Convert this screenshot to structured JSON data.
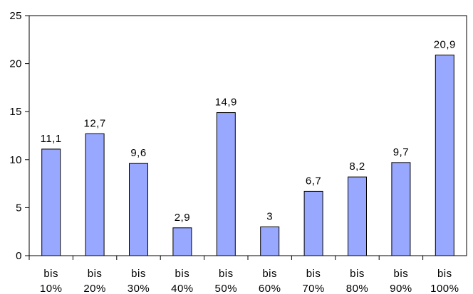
{
  "chart_data": {
    "type": "bar",
    "categories": [
      [
        "bis",
        "10%"
      ],
      [
        "bis",
        "20%"
      ],
      [
        "bis",
        "30%"
      ],
      [
        "bis",
        "40%"
      ],
      [
        "bis",
        "50%"
      ],
      [
        "bis",
        "60%"
      ],
      [
        "bis",
        "70%"
      ],
      [
        "bis",
        "80%"
      ],
      [
        "bis",
        "90%"
      ],
      [
        "bis",
        "100%"
      ]
    ],
    "values": [
      11.1,
      12.7,
      9.6,
      2.9,
      14.9,
      3,
      6.7,
      8.2,
      9.7,
      20.9
    ],
    "data_labels": [
      "11,1",
      "12,7",
      "9,6",
      "2,9",
      "14,9",
      "3",
      "6,7",
      "8,2",
      "9,7",
      "20,9"
    ],
    "y_ticks": [
      "0",
      "5",
      "10",
      "15",
      "20",
      "25"
    ],
    "ylim": [
      0,
      25
    ],
    "grid": false,
    "legend": "none",
    "bar_color": "#99a8ff",
    "bar_border_color": "#000000",
    "axis_color": "#000000"
  }
}
